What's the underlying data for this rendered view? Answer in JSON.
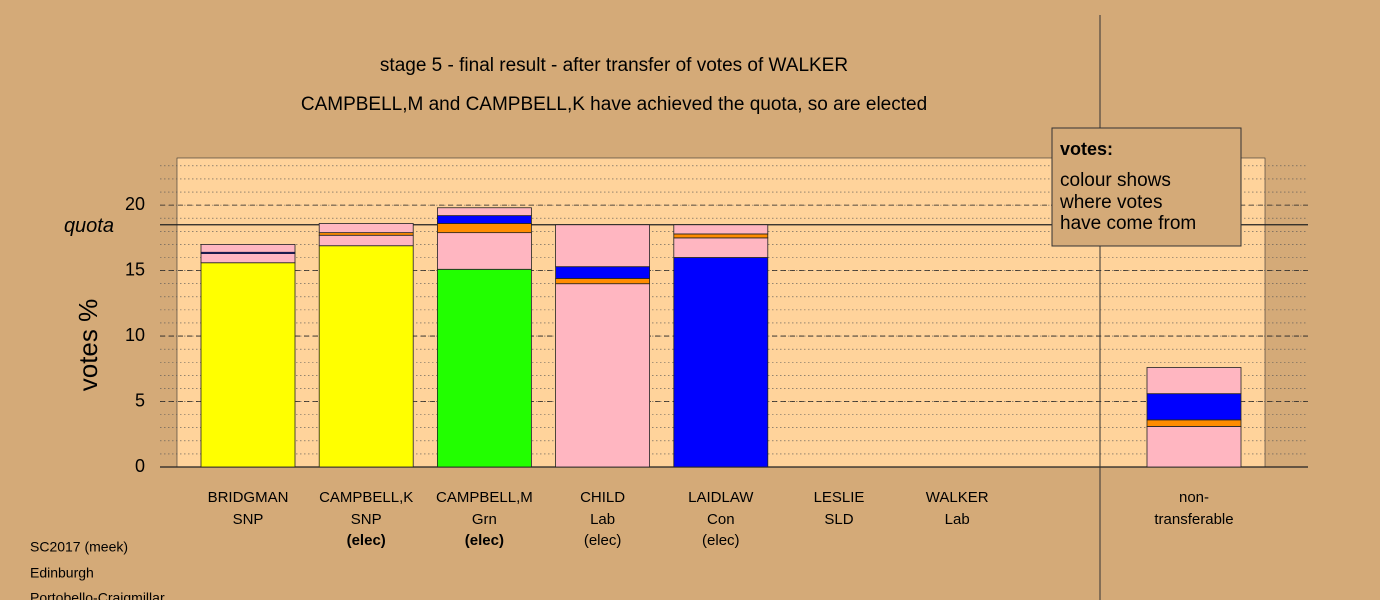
{
  "chart_data": {
    "type": "stacked_bar",
    "title": "stage 5 - final result - after transfer of votes of WALKER",
    "subtitle": "CAMPBELL,M and CAMPBELL,K have achieved the quota, so are elected",
    "ylabel": "votes %",
    "categories": [
      [
        "BRIDGMAN",
        "SNP"
      ],
      [
        "CAMPBELL,K",
        "SNP"
      ],
      [
        "CAMPBELL,M",
        "Grn"
      ],
      [
        "CHILD",
        "Lab"
      ],
      [
        "LAIDLAW",
        "Con"
      ],
      [
        "LESLIE",
        "SLD"
      ],
      [
        "WALKER",
        "Lab"
      ],
      [
        "non-",
        "transferable"
      ]
    ],
    "status": [
      null,
      "(elec)",
      "(elec)",
      "(elec)",
      "(elec)",
      null,
      null,
      null
    ],
    "status_bold": [
      false,
      true,
      true,
      false,
      false,
      false,
      false,
      false
    ],
    "stacks": [
      [
        {
          "color": "#ffff00",
          "value": 15.6
        },
        {
          "color": "#ffb6c1",
          "value": 0.7
        },
        {
          "color": "#0000ff",
          "value": 0.1
        },
        {
          "color": "#ffb6c1",
          "value": 0.6
        }
      ],
      [
        {
          "color": "#ffff00",
          "value": 16.9
        },
        {
          "color": "#ffb6c1",
          "value": 0.8
        },
        {
          "color": "#ff8c00",
          "value": 0.2
        },
        {
          "color": "#ffb6c1",
          "value": 0.7
        }
      ],
      [
        {
          "color": "#22ff00",
          "value": 15.1
        },
        {
          "color": "#ffb6c1",
          "value": 2.8
        },
        {
          "color": "#ff8c00",
          "value": 0.7
        },
        {
          "color": "#0000ff",
          "value": 0.6
        },
        {
          "color": "#ffb6c1",
          "value": 0.6
        }
      ],
      [
        {
          "color": "#ffb6c1",
          "value": 14.0
        },
        {
          "color": "#ff8c00",
          "value": 0.4
        },
        {
          "color": "#0000ff",
          "value": 0.9
        },
        {
          "color": "#ffb6c1",
          "value": 3.2
        }
      ],
      [
        {
          "color": "#0000ff",
          "value": 16.0
        },
        {
          "color": "#ffb6c1",
          "value": 1.5
        },
        {
          "color": "#ff8c00",
          "value": 0.3
        },
        {
          "color": "#ffb6c1",
          "value": 0.7
        }
      ],
      [],
      [],
      [
        {
          "color": "#ffb6c1",
          "value": 3.1
        },
        {
          "color": "#ff8c00",
          "value": 0.5
        },
        {
          "color": "#0000ff",
          "value": 2.0
        },
        {
          "color": "#ffb6c1",
          "value": 2.0
        }
      ]
    ],
    "quota": {
      "label": "quota",
      "value": 18.5
    },
    "ylim": [
      0,
      23.6
    ],
    "yticks": [
      0,
      5,
      10,
      15,
      20
    ],
    "minor_step": 1,
    "legend": {
      "title": "votes:",
      "lines": [
        "colour shows",
        "where votes",
        "have come from"
      ]
    },
    "footer": [
      "SC2017 (meek)",
      "Edinburgh",
      "Portobello-Craigmillar"
    ]
  }
}
